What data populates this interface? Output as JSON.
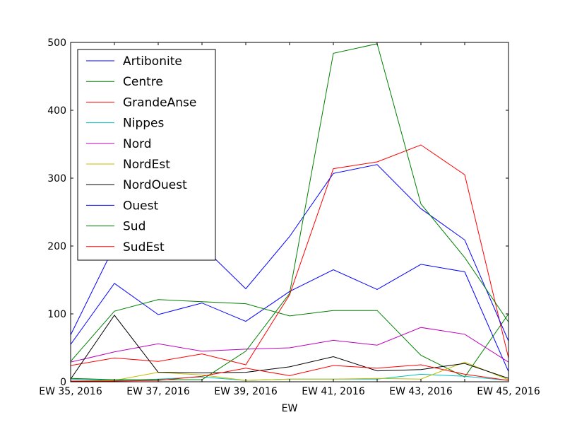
{
  "chart_data": {
    "type": "line",
    "xlabel": "EW",
    "ylabel": "",
    "ylim": [
      0,
      500
    ],
    "xlim": [
      0,
      10
    ],
    "x_tick_labels": [
      "EW 35, 2016",
      "EW 37, 2016",
      "EW 39, 2016",
      "EW 41, 2016",
      "EW 43, 2016",
      "EW 45, 2016"
    ],
    "x_tick_values": [
      0,
      2,
      4,
      6,
      8,
      10
    ],
    "y_ticks": [
      0,
      100,
      200,
      300,
      400,
      500
    ],
    "y_tick_labels": [
      "0",
      "100",
      "200",
      "300",
      "400",
      "500"
    ],
    "legend_position": "top-left",
    "grid": false,
    "series": [
      {
        "name": "Artibonite",
        "color": "#0000ff",
        "values": [
          55,
          145,
          99,
          116,
          89,
          133,
          165,
          136,
          173,
          162,
          15
        ]
      },
      {
        "name": "Centre",
        "color": "#008000",
        "values": [
          30,
          104,
          121,
          118,
          115,
          97,
          105,
          105,
          39,
          7,
          100
        ]
      },
      {
        "name": "GrandeAnse",
        "color": "#ff0000",
        "values": [
          24,
          35,
          30,
          41,
          25,
          128,
          314,
          324,
          349,
          305,
          35
        ]
      },
      {
        "name": "Nippes",
        "color": "#00bfbf",
        "values": [
          4,
          2,
          4,
          7,
          2,
          4,
          4,
          4,
          11,
          8,
          2
        ]
      },
      {
        "name": "Nord",
        "color": "#bf00bf",
        "values": [
          29,
          44,
          56,
          45,
          48,
          50,
          61,
          54,
          80,
          70,
          29
        ]
      },
      {
        "name": "NordEst",
        "color": "#bfbf00",
        "values": [
          1,
          2,
          14,
          10,
          2,
          4,
          4,
          5,
          4,
          29,
          3
        ]
      },
      {
        "name": "NordOuest",
        "color": "#000000",
        "values": [
          4,
          98,
          14,
          13,
          14,
          22,
          37,
          16,
          18,
          27,
          5
        ]
      },
      {
        "name": "Ouest",
        "color": "#0000ff",
        "values": [
          69,
          200,
          200,
          200,
          137,
          214,
          307,
          320,
          255,
          209,
          60
        ]
      },
      {
        "name": "Sud",
        "color": "#008000",
        "values": [
          5,
          3,
          3,
          3,
          45,
          130,
          484,
          498,
          262,
          183,
          88
        ]
      },
      {
        "name": "SudEst",
        "color": "#ff0000",
        "values": [
          1,
          1,
          2,
          8,
          20,
          9,
          24,
          20,
          25,
          11,
          2
        ]
      }
    ]
  }
}
